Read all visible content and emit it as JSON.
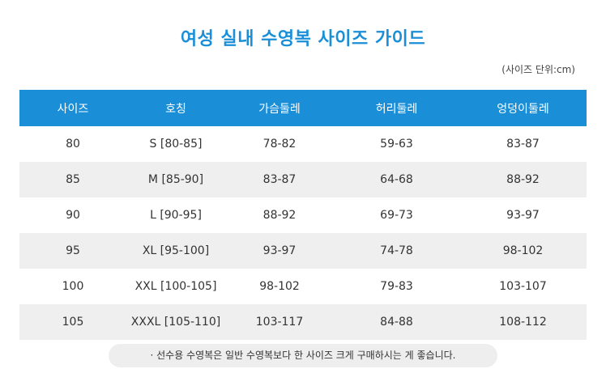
{
  "title": "여성 실내 수영복 사이즈  가이드",
  "unit_note": "(사이즈 단위:cm)",
  "colors": {
    "accent": "#1a8fd8",
    "stripe": "#efefef",
    "footnote_bg": "#eeeeee"
  },
  "table": {
    "headers": [
      "사이즈",
      "호칭",
      "가슴둘레",
      "허리둘레",
      "엉덩이둘레"
    ],
    "rows": [
      [
        "80",
        "S [80-85]",
        "78-82",
        "59-63",
        "83-87"
      ],
      [
        "85",
        "M [85-90]",
        "83-87",
        "64-68",
        "88-92"
      ],
      [
        "90",
        "L [90-95]",
        "88-92",
        "69-73",
        "93-97"
      ],
      [
        "95",
        "XL [95-100]",
        "93-97",
        "74-78",
        "98-102"
      ],
      [
        "100",
        "XXL [100-105]",
        "98-102",
        "79-83",
        "103-107"
      ],
      [
        "105",
        "XXXL [105-110]",
        "103-117",
        "84-88",
        "108-112"
      ]
    ]
  },
  "footnote": "· 선수용 수영복은 일반 수영복보다 한 사이즈 크게 구매하시는 게 좋습니다."
}
